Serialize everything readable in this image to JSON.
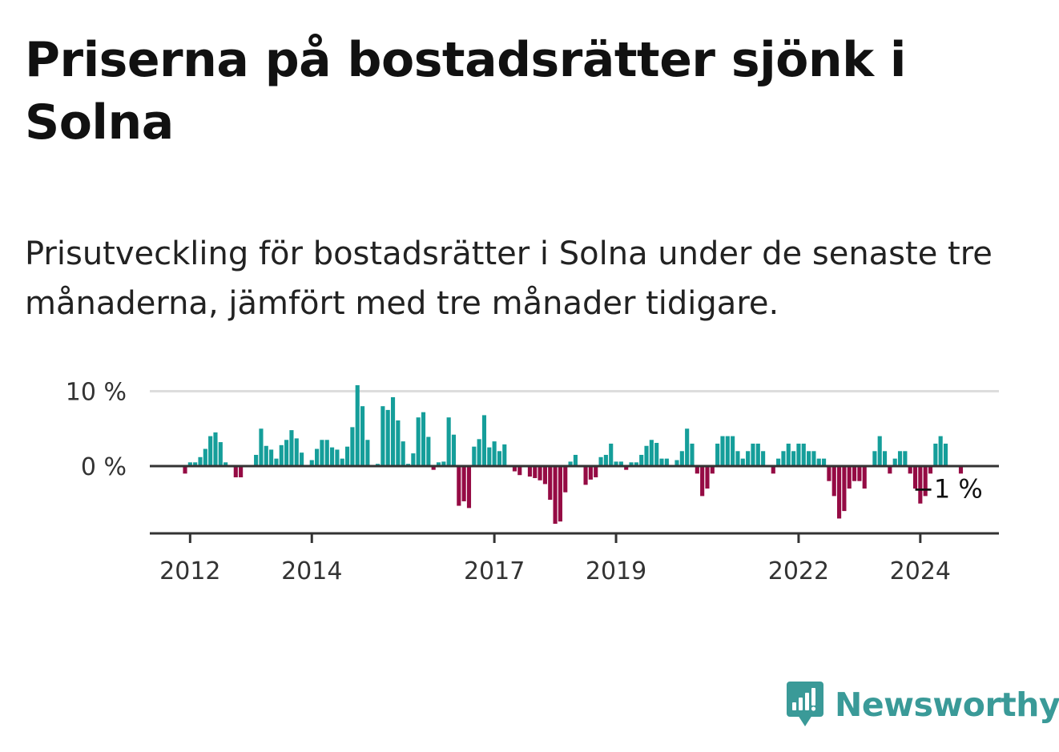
{
  "title": "Priserna på bostadsrätter sjönk i Solna",
  "subtitle": "Prisutveckling för bostadsrätter i Solna under de senaste tre månaderna, jämfört med tre månader tidigare.",
  "brand": {
    "name": "Newsworthy"
  },
  "colors": {
    "positive": "#159e9a",
    "negative": "#950b44",
    "brand": "#3a9a98",
    "grid": "#dddddd",
    "axis": "#333333"
  },
  "chart_data": {
    "type": "bar",
    "title": "Priserna på bostadsrätter sjönk i Solna",
    "subtitle": "Prisutveckling för bostadsrätter i Solna under de senaste tre månaderna, jämfört med tre månader tidigare.",
    "xlabel": "",
    "ylabel": "",
    "ylim": [
      -9,
      10
    ],
    "yticks": [
      {
        "value": 0,
        "label": "0 %"
      },
      {
        "value": 10,
        "label": "10 %"
      }
    ],
    "xticks": [
      "2012",
      "2014",
      "2017",
      "2019",
      "2022",
      "2024"
    ],
    "x_start": "2011-12",
    "x_end": "2024-07",
    "annotation": {
      "label": "−1 %",
      "value": -1,
      "date": "2024-07"
    },
    "values": [
      -1,
      0.5,
      0.5,
      1.2,
      2.3,
      4,
      4.5,
      3.2,
      0.5,
      0,
      -1.5,
      -1.5,
      0,
      0,
      1.5,
      5,
      2.7,
      2.2,
      1,
      2.8,
      3.5,
      4.8,
      3.7,
      1.8,
      0,
      0.8,
      2.3,
      3.5,
      3.5,
      2.5,
      2.2,
      1,
      2.6,
      5.2,
      10.8,
      8,
      3.5,
      0,
      0.3,
      8,
      7.5,
      9.2,
      6.1,
      3.3,
      0.3,
      1.7,
      6.5,
      7.2,
      3.9,
      -0.5,
      0.5,
      0.6,
      6.5,
      4.2,
      -5.3,
      -4.7,
      -5.6,
      2.6,
      3.6,
      6.8,
      2.5,
      3.3,
      2,
      2.9,
      0,
      -0.7,
      -1.2,
      0,
      -1.4,
      -1.6,
      -1.9,
      -2.4,
      -4.5,
      -7.7,
      -7.4,
      -3.5,
      0.6,
      1.5,
      0,
      -2.5,
      -1.8,
      -1.5,
      1.2,
      1.5,
      3,
      0.6,
      0.6,
      -0.5,
      0.5,
      0.5,
      1.5,
      2.7,
      3.5,
      3.1,
      1,
      1,
      0,
      0.8,
      2,
      5,
      3,
      -1,
      -4,
      -3,
      -1,
      3,
      4,
      4,
      4,
      2,
      1,
      2,
      3,
      3,
      2,
      0,
      -1,
      1,
      2,
      3,
      2,
      3,
      3,
      2,
      2,
      1,
      1,
      -2,
      -4,
      -7,
      -6,
      -3,
      -2,
      -2,
      -3,
      0,
      2,
      4,
      2,
      -1,
      1,
      2,
      2,
      -1,
      -3,
      -5,
      -4,
      -1,
      3,
      4,
      3,
      0,
      0,
      -1
    ]
  }
}
